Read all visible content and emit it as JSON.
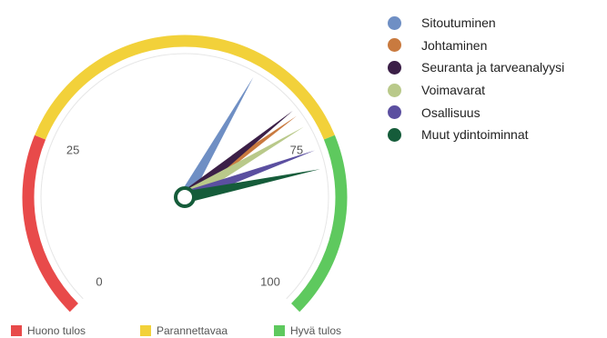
{
  "chart_data": {
    "type": "gauge",
    "scale": {
      "min": 0,
      "max": 100,
      "ticks": [
        0,
        25,
        75,
        100
      ]
    },
    "bands": [
      {
        "label": "Huono tulos",
        "from": 0,
        "to": 25,
        "color": "#e84a4a"
      },
      {
        "label": "Parannettavaa",
        "from": 25,
        "to": 75,
        "color": "#f2d13a"
      },
      {
        "label": "Hyvä tulos",
        "from": 75,
        "to": 100,
        "color": "#5ec95e"
      }
    ],
    "series": [
      {
        "name": "Sitoutuminen",
        "value": 61,
        "color": "#6f8fc4"
      },
      {
        "name": "Johtaminen",
        "value": 70,
        "color": "#c97a3f"
      },
      {
        "name": "Seuranta ja tarveanalyysi",
        "value": 69,
        "color": "#3b1f47"
      },
      {
        "name": "Voimavarat",
        "value": 72,
        "color": "#b9c98a"
      },
      {
        "name": "Osallisuus",
        "value": 76,
        "color": "#5b4fa0"
      },
      {
        "name": "Muut ydintoiminnat",
        "value": 79,
        "color": "#155c3a"
      }
    ]
  }
}
